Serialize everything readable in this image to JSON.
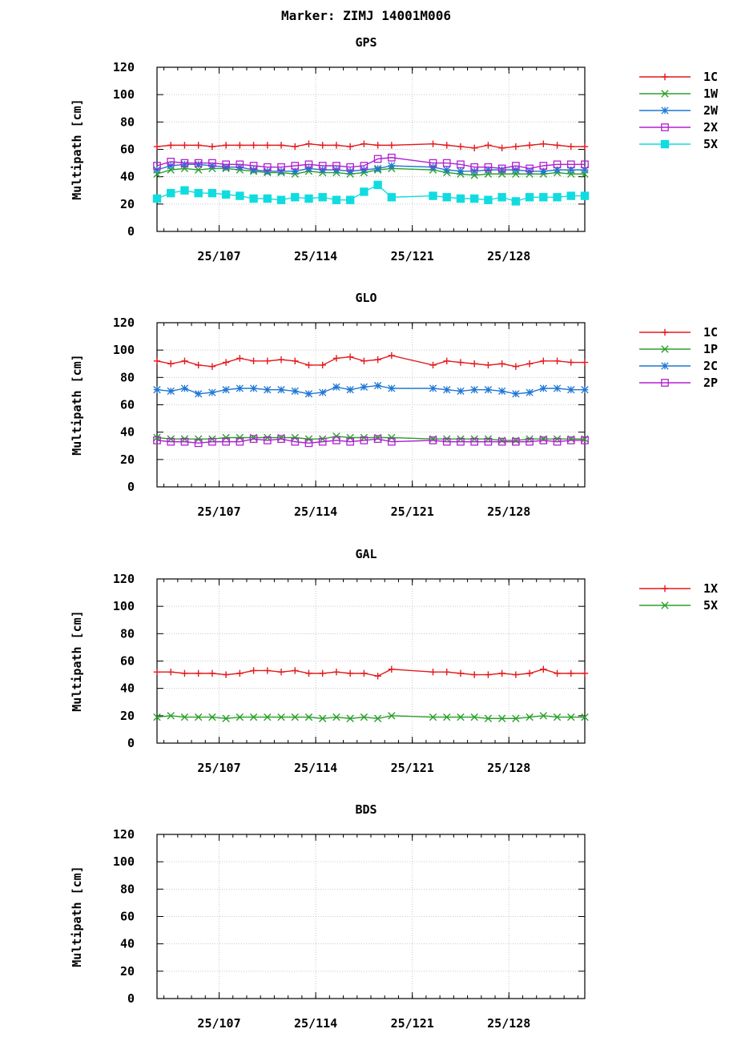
{
  "page_title": "Marker: ZIMJ 14001M006",
  "colors": {
    "1C": "#e41a1c",
    "1W": "#2ca02c",
    "1P": "#2ca02c",
    "2W": "#1f77d4",
    "2C": "#1f77d4",
    "2X": "#b020d0",
    "2P": "#b020d0",
    "5X_gps": "#10dce0",
    "1X": "#e41a1c",
    "5X_gal": "#2ca02c"
  },
  "chart_data": [
    {
      "type": "line",
      "title": "GPS",
      "ylabel": "Multipath [cm]",
      "ylim": [
        0,
        120
      ],
      "xlim": [
        102.5,
        133.5
      ],
      "yticks": [
        "0",
        "20",
        "40",
        "60",
        "80",
        "100",
        "120"
      ],
      "xticks": [
        {
          "value": 107,
          "label": "25/107"
        },
        {
          "value": 114,
          "label": "25/114"
        },
        {
          "value": 121,
          "label": "25/121"
        },
        {
          "value": 128,
          "label": "25/128"
        }
      ],
      "x": [
        102.5,
        103.5,
        104.5,
        105.5,
        106.5,
        107.5,
        108.5,
        109.5,
        110.5,
        111.5,
        112.5,
        113.5,
        114.5,
        115.5,
        116.5,
        117.5,
        118.5,
        119.5,
        122.5,
        123.5,
        124.5,
        125.5,
        126.5,
        127.5,
        128.5,
        129.5,
        130.5,
        131.5,
        132.5,
        133.5
      ],
      "series": [
        {
          "name": "1C",
          "marker": "plus",
          "color": "#e41a1c",
          "values": [
            62,
            63,
            63,
            63,
            62,
            63,
            63,
            63,
            63,
            63,
            62,
            64,
            63,
            63,
            62,
            64,
            63,
            63,
            64,
            63,
            62,
            61,
            63,
            61,
            62,
            63,
            64,
            63,
            62,
            62
          ]
        },
        {
          "name": "1W",
          "marker": "x",
          "color": "#2ca02c",
          "values": [
            42,
            45,
            46,
            45,
            46,
            46,
            45,
            44,
            43,
            43,
            42,
            44,
            43,
            43,
            42,
            43,
            45,
            46,
            45,
            43,
            42,
            41,
            42,
            42,
            42,
            42,
            42,
            43,
            42,
            42
          ]
        },
        {
          "name": "2W",
          "marker": "star",
          "color": "#1f77d4",
          "values": [
            45,
            48,
            49,
            49,
            48,
            47,
            47,
            45,
            44,
            44,
            44,
            46,
            45,
            45,
            44,
            45,
            46,
            48,
            47,
            45,
            44,
            44,
            45,
            45,
            45,
            44,
            44,
            45,
            45,
            45
          ]
        },
        {
          "name": "2X",
          "marker": "square",
          "color": "#b020d0",
          "values": [
            48,
            51,
            50,
            50,
            50,
            49,
            49,
            48,
            47,
            47,
            48,
            49,
            48,
            48,
            47,
            48,
            53,
            54,
            50,
            50,
            49,
            47,
            47,
            46,
            48,
            46,
            48,
            49,
            49,
            49
          ]
        },
        {
          "name": "5X",
          "marker": "filledsquare",
          "color": "#10dce0",
          "values": [
            24,
            28,
            30,
            28,
            28,
            27,
            26,
            24,
            24,
            23,
            25,
            24,
            25,
            23,
            23,
            29,
            34,
            25,
            26,
            25,
            24,
            24,
            23,
            25,
            22,
            25,
            25,
            25,
            26,
            26
          ]
        }
      ]
    },
    {
      "type": "line",
      "title": "GLO",
      "ylabel": "Multipath [cm]",
      "ylim": [
        0,
        120
      ],
      "xlim": [
        102.5,
        133.5
      ],
      "yticks": [
        "0",
        "20",
        "40",
        "60",
        "80",
        "100",
        "120"
      ],
      "xticks": [
        {
          "value": 107,
          "label": "25/107"
        },
        {
          "value": 114,
          "label": "25/114"
        },
        {
          "value": 121,
          "label": "25/121"
        },
        {
          "value": 128,
          "label": "25/128"
        }
      ],
      "x": [
        102.5,
        103.5,
        104.5,
        105.5,
        106.5,
        107.5,
        108.5,
        109.5,
        110.5,
        111.5,
        112.5,
        113.5,
        114.5,
        115.5,
        116.5,
        117.5,
        118.5,
        119.5,
        122.5,
        123.5,
        124.5,
        125.5,
        126.5,
        127.5,
        128.5,
        129.5,
        130.5,
        131.5,
        132.5,
        133.5
      ],
      "series": [
        {
          "name": "1C",
          "marker": "plus",
          "color": "#e41a1c",
          "values": [
            92,
            90,
            92,
            89,
            88,
            91,
            94,
            92,
            92,
            93,
            92,
            89,
            89,
            94,
            95,
            92,
            93,
            96,
            89,
            92,
            91,
            90,
            89,
            90,
            88,
            90,
            92,
            92,
            91,
            91
          ]
        },
        {
          "name": "1P",
          "marker": "x",
          "color": "#2ca02c",
          "values": [
            36,
            35,
            35,
            35,
            35,
            36,
            36,
            36,
            36,
            36,
            36,
            35,
            35,
            37,
            36,
            36,
            36,
            36,
            35,
            35,
            35,
            35,
            35,
            34,
            34,
            35,
            35,
            35,
            35,
            35
          ]
        },
        {
          "name": "2C",
          "marker": "star",
          "color": "#1f77d4",
          "values": [
            71,
            70,
            72,
            68,
            69,
            71,
            72,
            72,
            71,
            71,
            70,
            68,
            69,
            73,
            71,
            73,
            74,
            72,
            72,
            71,
            70,
            71,
            71,
            70,
            68,
            69,
            72,
            72,
            71,
            71
          ]
        },
        {
          "name": "2P",
          "marker": "square",
          "color": "#b020d0",
          "values": [
            34,
            33,
            33,
            32,
            33,
            33,
            33,
            35,
            34,
            35,
            33,
            32,
            33,
            34,
            33,
            34,
            35,
            33,
            34,
            33,
            33,
            33,
            33,
            33,
            33,
            33,
            34,
            33,
            34,
            34
          ]
        }
      ]
    },
    {
      "type": "line",
      "title": "GAL",
      "ylabel": "Multipath [cm]",
      "ylim": [
        0,
        120
      ],
      "xlim": [
        102.5,
        133.5
      ],
      "yticks": [
        "0",
        "20",
        "40",
        "60",
        "80",
        "100",
        "120"
      ],
      "xticks": [
        {
          "value": 107,
          "label": "25/107"
        },
        {
          "value": 114,
          "label": "25/114"
        },
        {
          "value": 121,
          "label": "25/121"
        },
        {
          "value": 128,
          "label": "25/128"
        }
      ],
      "x": [
        102.5,
        103.5,
        104.5,
        105.5,
        106.5,
        107.5,
        108.5,
        109.5,
        110.5,
        111.5,
        112.5,
        113.5,
        114.5,
        115.5,
        116.5,
        117.5,
        118.5,
        119.5,
        122.5,
        123.5,
        124.5,
        125.5,
        126.5,
        127.5,
        128.5,
        129.5,
        130.5,
        131.5,
        132.5,
        133.5
      ],
      "series": [
        {
          "name": "1X",
          "marker": "plus",
          "color": "#e41a1c",
          "values": [
            52,
            52,
            51,
            51,
            51,
            50,
            51,
            53,
            53,
            52,
            53,
            51,
            51,
            52,
            51,
            51,
            49,
            54,
            52,
            52,
            51,
            50,
            50,
            51,
            50,
            51,
            54,
            51,
            51,
            51
          ]
        },
        {
          "name": "5X",
          "marker": "x",
          "color": "#2ca02c",
          "values": [
            19,
            20,
            19,
            19,
            19,
            18,
            19,
            19,
            19,
            19,
            19,
            19,
            18,
            19,
            18,
            19,
            18,
            20,
            19,
            19,
            19,
            19,
            18,
            18,
            18,
            19,
            20,
            19,
            19,
            19
          ]
        }
      ]
    },
    {
      "type": "line",
      "title": "BDS",
      "ylabel": "Multipath [cm]",
      "ylim": [
        0,
        120
      ],
      "xlim": [
        102.5,
        133.5
      ],
      "yticks": [
        "0",
        "20",
        "40",
        "60",
        "80",
        "100",
        "120"
      ],
      "xticks": [
        {
          "value": 107,
          "label": "25/107"
        },
        {
          "value": 114,
          "label": "25/114"
        },
        {
          "value": 121,
          "label": "25/121"
        },
        {
          "value": 128,
          "label": "25/128"
        }
      ],
      "x": [],
      "series": []
    }
  ]
}
